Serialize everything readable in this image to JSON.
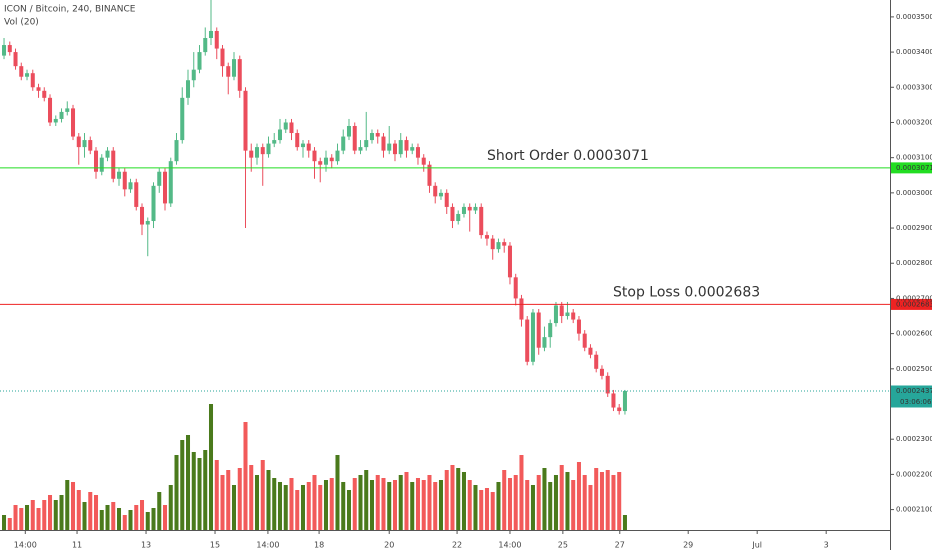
{
  "chart_data": {
    "type": "candlestick",
    "title": "ICON / Bitcoin, 240, BINANCE",
    "volume_title": "Vol (20)",
    "colors": {
      "up": "#53b987",
      "down": "#eb4d5c",
      "volume_up": "#4a7a1c",
      "volume_down": "#f25a5a"
    },
    "open": [
      0.000339,
      0.000342,
      0.00034,
      0.000336,
      0.000333,
      0.000334,
      0.00033,
      0.000329,
      0.000327,
      0.00032,
      0.000321,
      0.000323,
      0.000324,
      0.000316,
      0.000313,
      0.000315,
      0.000312,
      0.000306,
      0.00031,
      0.000312,
      0.000304,
      0.000306,
      0.000301,
      0.000303,
      0.000296,
      0.000291,
      0.000292,
      0.000302,
      0.000306,
      0.000297,
      0.000309,
      0.000315,
      0.000327,
      0.000332,
      0.000335,
      0.00034,
      0.000344,
      0.000346,
      0.000341,
      0.000336,
      0.000333,
      0.000338,
      0.000329,
      0.000312,
      0.00031,
      0.000313,
      0.000311,
      0.000314,
      0.000315,
      0.000318,
      0.00032,
      0.000317,
      0.000313,
      0.000314,
      0.000312,
      0.000309,
      0.000308,
      0.00031,
      0.000309,
      0.000312,
      0.000316,
      0.000319,
      0.000312,
      0.000313,
      0.000315,
      0.000317,
      0.000316,
      0.000312,
      0.000314,
      0.000311,
      0.000315,
      0.000312,
      0.000313,
      0.00031,
      0.000308,
      0.000302,
      0.000299,
      0.0003,
      0.000296,
      0.000292,
      0.000294,
      0.000296,
      0.000295,
      0.000296,
      0.000288,
      0.000287,
      0.000284,
      0.000286,
      0.000285,
      0.000276,
      0.00027,
      0.000264,
      0.000252,
      0.000266,
      0.000256,
      0.000259,
      0.000263,
      0.000268,
      0.000265,
      0.000266,
      0.000264,
      0.00026,
      0.000256,
      0.000254,
      0.00025,
      0.000248,
      0.000243,
      0.000239,
      0.000238
    ],
    "high": [
      0.000344,
      0.000343,
      0.000341,
      0.000337,
      0.000335,
      0.000335,
      0.000331,
      0.00033,
      0.000328,
      0.000322,
      0.000324,
      0.000326,
      0.000325,
      0.000317,
      0.000317,
      0.000316,
      0.000313,
      0.000311,
      0.000313,
      0.000313,
      0.000307,
      0.000307,
      0.000304,
      0.000304,
      0.000297,
      0.000293,
      0.000303,
      0.000307,
      0.000307,
      0.00031,
      0.000317,
      0.00033,
      0.000335,
      0.00034,
      0.000342,
      0.000347,
      0.000355,
      0.000347,
      0.000342,
      0.000337,
      0.00034,
      0.000339,
      0.00033,
      0.000314,
      0.000314,
      0.000314,
      0.000316,
      0.000317,
      0.000321,
      0.000321,
      0.000321,
      0.000318,
      0.000315,
      0.000315,
      0.000313,
      0.00031,
      0.000312,
      0.000311,
      0.000314,
      0.000318,
      0.000321,
      0.00032,
      0.000315,
      0.000323,
      0.000318,
      0.000318,
      0.000317,
      0.000319,
      0.000315,
      0.000317,
      0.000316,
      0.000314,
      0.000314,
      0.000311,
      0.000309,
      0.000303,
      0.000301,
      0.000301,
      0.000297,
      0.000295,
      0.000297,
      0.000297,
      0.000297,
      0.000297,
      0.000289,
      0.000288,
      0.000287,
      0.000287,
      0.000286,
      0.000277,
      0.000271,
      0.000265,
      0.000267,
      0.000267,
      0.000262,
      0.000264,
      0.000269,
      0.000269,
      0.000269,
      0.000267,
      0.000265,
      0.000261,
      0.000257,
      0.000255,
      0.000251,
      0.000249,
      0.000244,
      0.00024,
      0.000244
    ],
    "low": [
      0.000338,
      0.000339,
      0.000335,
      0.000332,
      0.000332,
      0.000329,
      0.000327,
      0.000326,
      0.000319,
      0.000319,
      0.00032,
      0.000322,
      0.000315,
      0.000308,
      0.00031,
      0.000311,
      0.000304,
      0.000305,
      0.000309,
      0.000303,
      0.000302,
      0.000299,
      0.0003,
      0.000295,
      0.000288,
      0.000282,
      0.00029,
      0.0003,
      0.000295,
      0.000296,
      0.000308,
      0.000314,
      0.000325,
      0.00033,
      0.000334,
      0.000339,
      0.000342,
      0.000338,
      0.000333,
      0.000328,
      0.000332,
      0.000327,
      0.00029,
      0.000306,
      0.000308,
      0.000302,
      0.00031,
      0.000313,
      0.000314,
      0.000317,
      0.000315,
      0.000312,
      0.00031,
      0.00031,
      0.000304,
      0.000303,
      0.000306,
      0.000307,
      0.000308,
      0.000311,
      0.000315,
      0.000311,
      0.000311,
      0.000312,
      0.000314,
      0.000314,
      0.00031,
      0.000311,
      0.000309,
      0.00031,
      0.00031,
      0.000311,
      0.000308,
      0.000306,
      0.0003,
      0.000297,
      0.000298,
      0.000294,
      0.00029,
      0.000291,
      0.000293,
      0.000289,
      0.000294,
      0.000287,
      0.000285,
      0.000281,
      0.000283,
      0.000283,
      0.000274,
      0.000268,
      0.000262,
      0.000251,
      0.000251,
      0.000254,
      0.000255,
      0.000256,
      0.000262,
      0.000263,
      0.000264,
      0.000263,
      0.000258,
      0.000255,
      0.000253,
      0.000249,
      0.000247,
      0.000242,
      0.000238,
      0.000237,
      0.000237
    ],
    "close": [
      0.000342,
      0.00034,
      0.000336,
      0.000333,
      0.000334,
      0.00033,
      0.000329,
      0.000327,
      0.00032,
      0.000321,
      0.000323,
      0.000324,
      0.000316,
      0.000313,
      0.000315,
      0.000312,
      0.000306,
      0.00031,
      0.000312,
      0.000304,
      0.000306,
      0.000301,
      0.000303,
      0.000296,
      0.000291,
      0.000292,
      0.000302,
      0.000306,
      0.000297,
      0.000309,
      0.000315,
      0.000327,
      0.000332,
      0.000335,
      0.00034,
      0.000344,
      0.000346,
      0.000341,
      0.000336,
      0.000333,
      0.000338,
      0.000329,
      0.000312,
      0.00031,
      0.000313,
      0.000311,
      0.000314,
      0.000315,
      0.000318,
      0.00032,
      0.000317,
      0.000313,
      0.000314,
      0.000312,
      0.000309,
      0.000308,
      0.00031,
      0.000309,
      0.000312,
      0.000316,
      0.000319,
      0.000312,
      0.000313,
      0.000315,
      0.000317,
      0.000316,
      0.000312,
      0.000314,
      0.000311,
      0.000315,
      0.000312,
      0.000313,
      0.00031,
      0.000308,
      0.000302,
      0.000299,
      0.0003,
      0.000296,
      0.000292,
      0.000294,
      0.000296,
      0.000295,
      0.000296,
      0.000288,
      0.000287,
      0.000284,
      0.000286,
      0.000285,
      0.000276,
      0.00027,
      0.000264,
      0.000252,
      0.000266,
      0.000256,
      0.000259,
      0.000263,
      0.000268,
      0.000265,
      0.000266,
      0.000264,
      0.00026,
      0.000256,
      0.000254,
      0.00025,
      0.000248,
      0.000243,
      0.000239,
      0.000238,
      0.0002437
    ],
    "volume": [
      15,
      12,
      25,
      22,
      25,
      30,
      22,
      30,
      35,
      30,
      35,
      50,
      48,
      40,
      28,
      38,
      35,
      20,
      25,
      28,
      22,
      15,
      20,
      25,
      30,
      18,
      22,
      38,
      25,
      45,
      75,
      90,
      95,
      78,
      72,
      80,
      126,
      70,
      55,
      60,
      45,
      62,
      108,
      65,
      55,
      70,
      60,
      52,
      48,
      45,
      52,
      40,
      45,
      48,
      55,
      45,
      50,
      52,
      75,
      48,
      40,
      52,
      55,
      60,
      50,
      55,
      52,
      48,
      50,
      55,
      58,
      48,
      52,
      50,
      55,
      48,
      50,
      60,
      65,
      62,
      58,
      50,
      45,
      40,
      42,
      38,
      48,
      60,
      52,
      55,
      75,
      50,
      45,
      55,
      62,
      48,
      55,
      65,
      58,
      50,
      68,
      55,
      45,
      62,
      58,
      60,
      55,
      58,
      15
    ],
    "volume_lim": [
      0,
      530
    ],
    "xlim": [
      -0.7,
      154.1
    ],
    "xticks": [
      {
        "value": 3.7,
        "label": "14:00"
      },
      {
        "value": 12.7,
        "label": "11"
      },
      {
        "value": 24.7,
        "label": "13"
      },
      {
        "value": 36.7,
        "label": "15"
      },
      {
        "value": 45.9,
        "label": "14:00"
      },
      {
        "value": 54.8,
        "label": "18"
      },
      {
        "value": 67,
        "label": "20"
      },
      {
        "value": 78.8,
        "label": "22"
      },
      {
        "value": 88,
        "label": "14:00"
      },
      {
        "value": 97.2,
        "label": "25"
      },
      {
        "value": 107.1,
        "label": "27"
      },
      {
        "value": 119,
        "label": "29"
      },
      {
        "value": 131,
        "label": "Jul"
      },
      {
        "value": 143,
        "label": "3"
      }
    ],
    "ylim": [
      0.0002042,
      0.0003548
    ],
    "yticks": [
      {
        "value": 0.00035,
        "label": "0.0003500"
      },
      {
        "value": 0.00034,
        "label": "0.0003400"
      },
      {
        "value": 0.00033,
        "label": "0.0003300"
      },
      {
        "value": 0.00032,
        "label": "0.0003200"
      },
      {
        "value": 0.00031,
        "label": "0.0003100"
      },
      {
        "value": 0.0003,
        "label": "0.0003000"
      },
      {
        "value": 0.00029,
        "label": "0.0002900"
      },
      {
        "value": 0.00028,
        "label": "0.0002800"
      },
      {
        "value": 0.00027,
        "label": "0.0002700"
      },
      {
        "value": 0.00026,
        "label": "0.0002600"
      },
      {
        "value": 0.00025,
        "label": "0.0002500"
      },
      {
        "value": 0.00023,
        "label": "0.0002300"
      },
      {
        "value": 0.00022,
        "label": "0.0002200"
      },
      {
        "value": 0.00021,
        "label": "0.0002100"
      }
    ],
    "lines": [
      {
        "label": "Short Order 0.0003071",
        "value": 0.0003071,
        "color": "#22dd22",
        "text_color": "#22cc22",
        "badge_text": "#000000"
      },
      {
        "label": "Stop Loss 0.0002683",
        "value": 0.0002683,
        "color": "#ee2222",
        "text_color": "#ee1111",
        "badge_text": "#ffffff"
      }
    ],
    "last_price_color": "#26a69a",
    "countdown": "03:06:06"
  }
}
